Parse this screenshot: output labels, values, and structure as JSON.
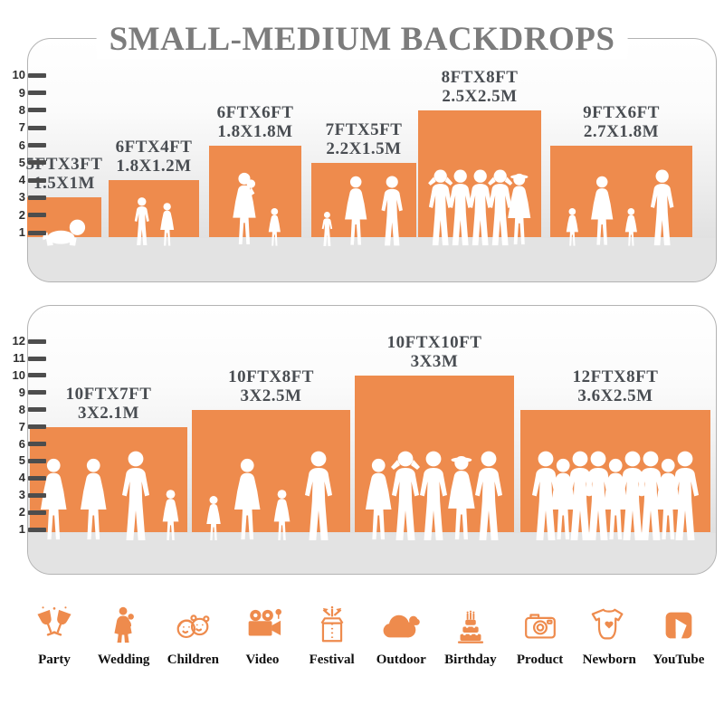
{
  "title": "SMALL-MEDIUM BACKDROPS",
  "colors": {
    "bar_orange": "#EE8B4D",
    "title_gray": "#7C7C7C",
    "label_gray": "#494D52",
    "floor_gray": "#E3E3E3",
    "tick_gray": "#4D4D4D"
  },
  "panels": [
    {
      "name": "small-medium-top",
      "ruler_unit": "ft",
      "ruler_ticks": [
        1,
        2,
        3,
        4,
        5,
        6,
        7,
        8,
        9,
        10
      ],
      "bars": [
        {
          "size_ft": "5FTX3FT",
          "size_m": "1.5X1M",
          "width_ft": 5,
          "height_ft": 3,
          "people": [
            "baby-crawling"
          ]
        },
        {
          "size_ft": "6FTX4FT",
          "size_m": "1.8X1.2M",
          "width_ft": 6,
          "height_ft": 4,
          "people": [
            "boy",
            "girl"
          ]
        },
        {
          "size_ft": "6FTX6FT",
          "size_m": "1.8X1.8M",
          "width_ft": 6,
          "height_ft": 6,
          "people": [
            "woman-holding-baby",
            "girl-small"
          ]
        },
        {
          "size_ft": "7FTX5FT",
          "size_m": "2.2X1.5M",
          "width_ft": 7,
          "height_ft": 5,
          "people": [
            "child-small",
            "woman",
            "man"
          ]
        },
        {
          "size_ft": "8FTX8FT",
          "size_m": "2.5X2.5M",
          "width_ft": 8,
          "height_ft": 8,
          "people": [
            "man-arms-up",
            "man",
            "man",
            "man-arms-up",
            "woman-hat"
          ]
        },
        {
          "size_ft": "9FTX6FT",
          "size_m": "2.7X1.8M",
          "width_ft": 9,
          "height_ft": 6,
          "people": [
            "girl-small",
            "woman",
            "girl-small",
            "man"
          ]
        }
      ]
    },
    {
      "name": "small-medium-bottom",
      "ruler_unit": "ft",
      "ruler_ticks": [
        1,
        2,
        3,
        4,
        5,
        6,
        7,
        8,
        9,
        10,
        11,
        12
      ],
      "bars": [
        {
          "size_ft": "10FTX7FT",
          "size_m": "3X2.1M",
          "width_ft": 10,
          "height_ft": 7,
          "people": [
            "woman",
            "woman",
            "man",
            "girl"
          ]
        },
        {
          "size_ft": "10FTX8FT",
          "size_m": "3X2.5M",
          "width_ft": 10,
          "height_ft": 8,
          "people": [
            "girl-small",
            "woman",
            "girl",
            "man"
          ]
        },
        {
          "size_ft": "10FTX10FT",
          "size_m": "3X3M",
          "width_ft": 10,
          "height_ft": 10,
          "people": [
            "woman",
            "man-arms-up",
            "man",
            "woman-hat",
            "man"
          ]
        },
        {
          "size_ft": "12FTX8FT",
          "size_m": "3.6X2.5M",
          "width_ft": 12,
          "height_ft": 8,
          "people": [
            "man",
            "woman",
            "man",
            "man",
            "woman",
            "man",
            "man",
            "woman",
            "man"
          ]
        }
      ]
    }
  ],
  "categories": [
    {
      "label": "Party",
      "icon": "party-icon"
    },
    {
      "label": "Wedding",
      "icon": "wedding-icon"
    },
    {
      "label": "Children",
      "icon": "children-icon"
    },
    {
      "label": "Video",
      "icon": "video-icon"
    },
    {
      "label": "Festival",
      "icon": "festival-icon"
    },
    {
      "label": "Outdoor",
      "icon": "outdoor-icon"
    },
    {
      "label": "Birthday",
      "icon": "birthday-icon"
    },
    {
      "label": "Product",
      "icon": "product-icon"
    },
    {
      "label": "Newborn",
      "icon": "newborn-icon"
    },
    {
      "label": "YouTube",
      "icon": "youtube-icon"
    }
  ],
  "chart_data": [
    {
      "type": "bar",
      "title": "SMALL-MEDIUM BACKDROPS — panel 1",
      "categories": [
        "5FTX3FT 1.5X1M",
        "6FTX4FT 1.8X1.2M",
        "6FTX6FT 1.8X1.8M",
        "7FTX5FT 2.2X1.5M",
        "8FTX8FT 2.5X2.5M",
        "9FTX6FT 2.7X1.8M"
      ],
      "series": [
        {
          "name": "height_ft",
          "values": [
            3,
            4,
            6,
            5,
            8,
            6
          ]
        },
        {
          "name": "width_ft",
          "values": [
            5,
            6,
            6,
            7,
            8,
            9
          ]
        }
      ],
      "xlabel": "",
      "ylabel": "feet (ruler ticks)",
      "ylim": [
        0,
        10
      ],
      "legend_position": "none",
      "grid": false
    },
    {
      "type": "bar",
      "title": "SMALL-MEDIUM BACKDROPS — panel 2",
      "categories": [
        "10FTX7FT 3X2.1M",
        "10FTX8FT 3X2.5M",
        "10FTX10FT 3X3M",
        "12FTX8FT 3.6X2.5M"
      ],
      "series": [
        {
          "name": "height_ft",
          "values": [
            7,
            8,
            10,
            8
          ]
        },
        {
          "name": "width_ft",
          "values": [
            10,
            10,
            10,
            12
          ]
        }
      ],
      "xlabel": "",
      "ylabel": "feet (ruler ticks)",
      "ylim": [
        0,
        12
      ],
      "legend_position": "none",
      "grid": false
    }
  ]
}
